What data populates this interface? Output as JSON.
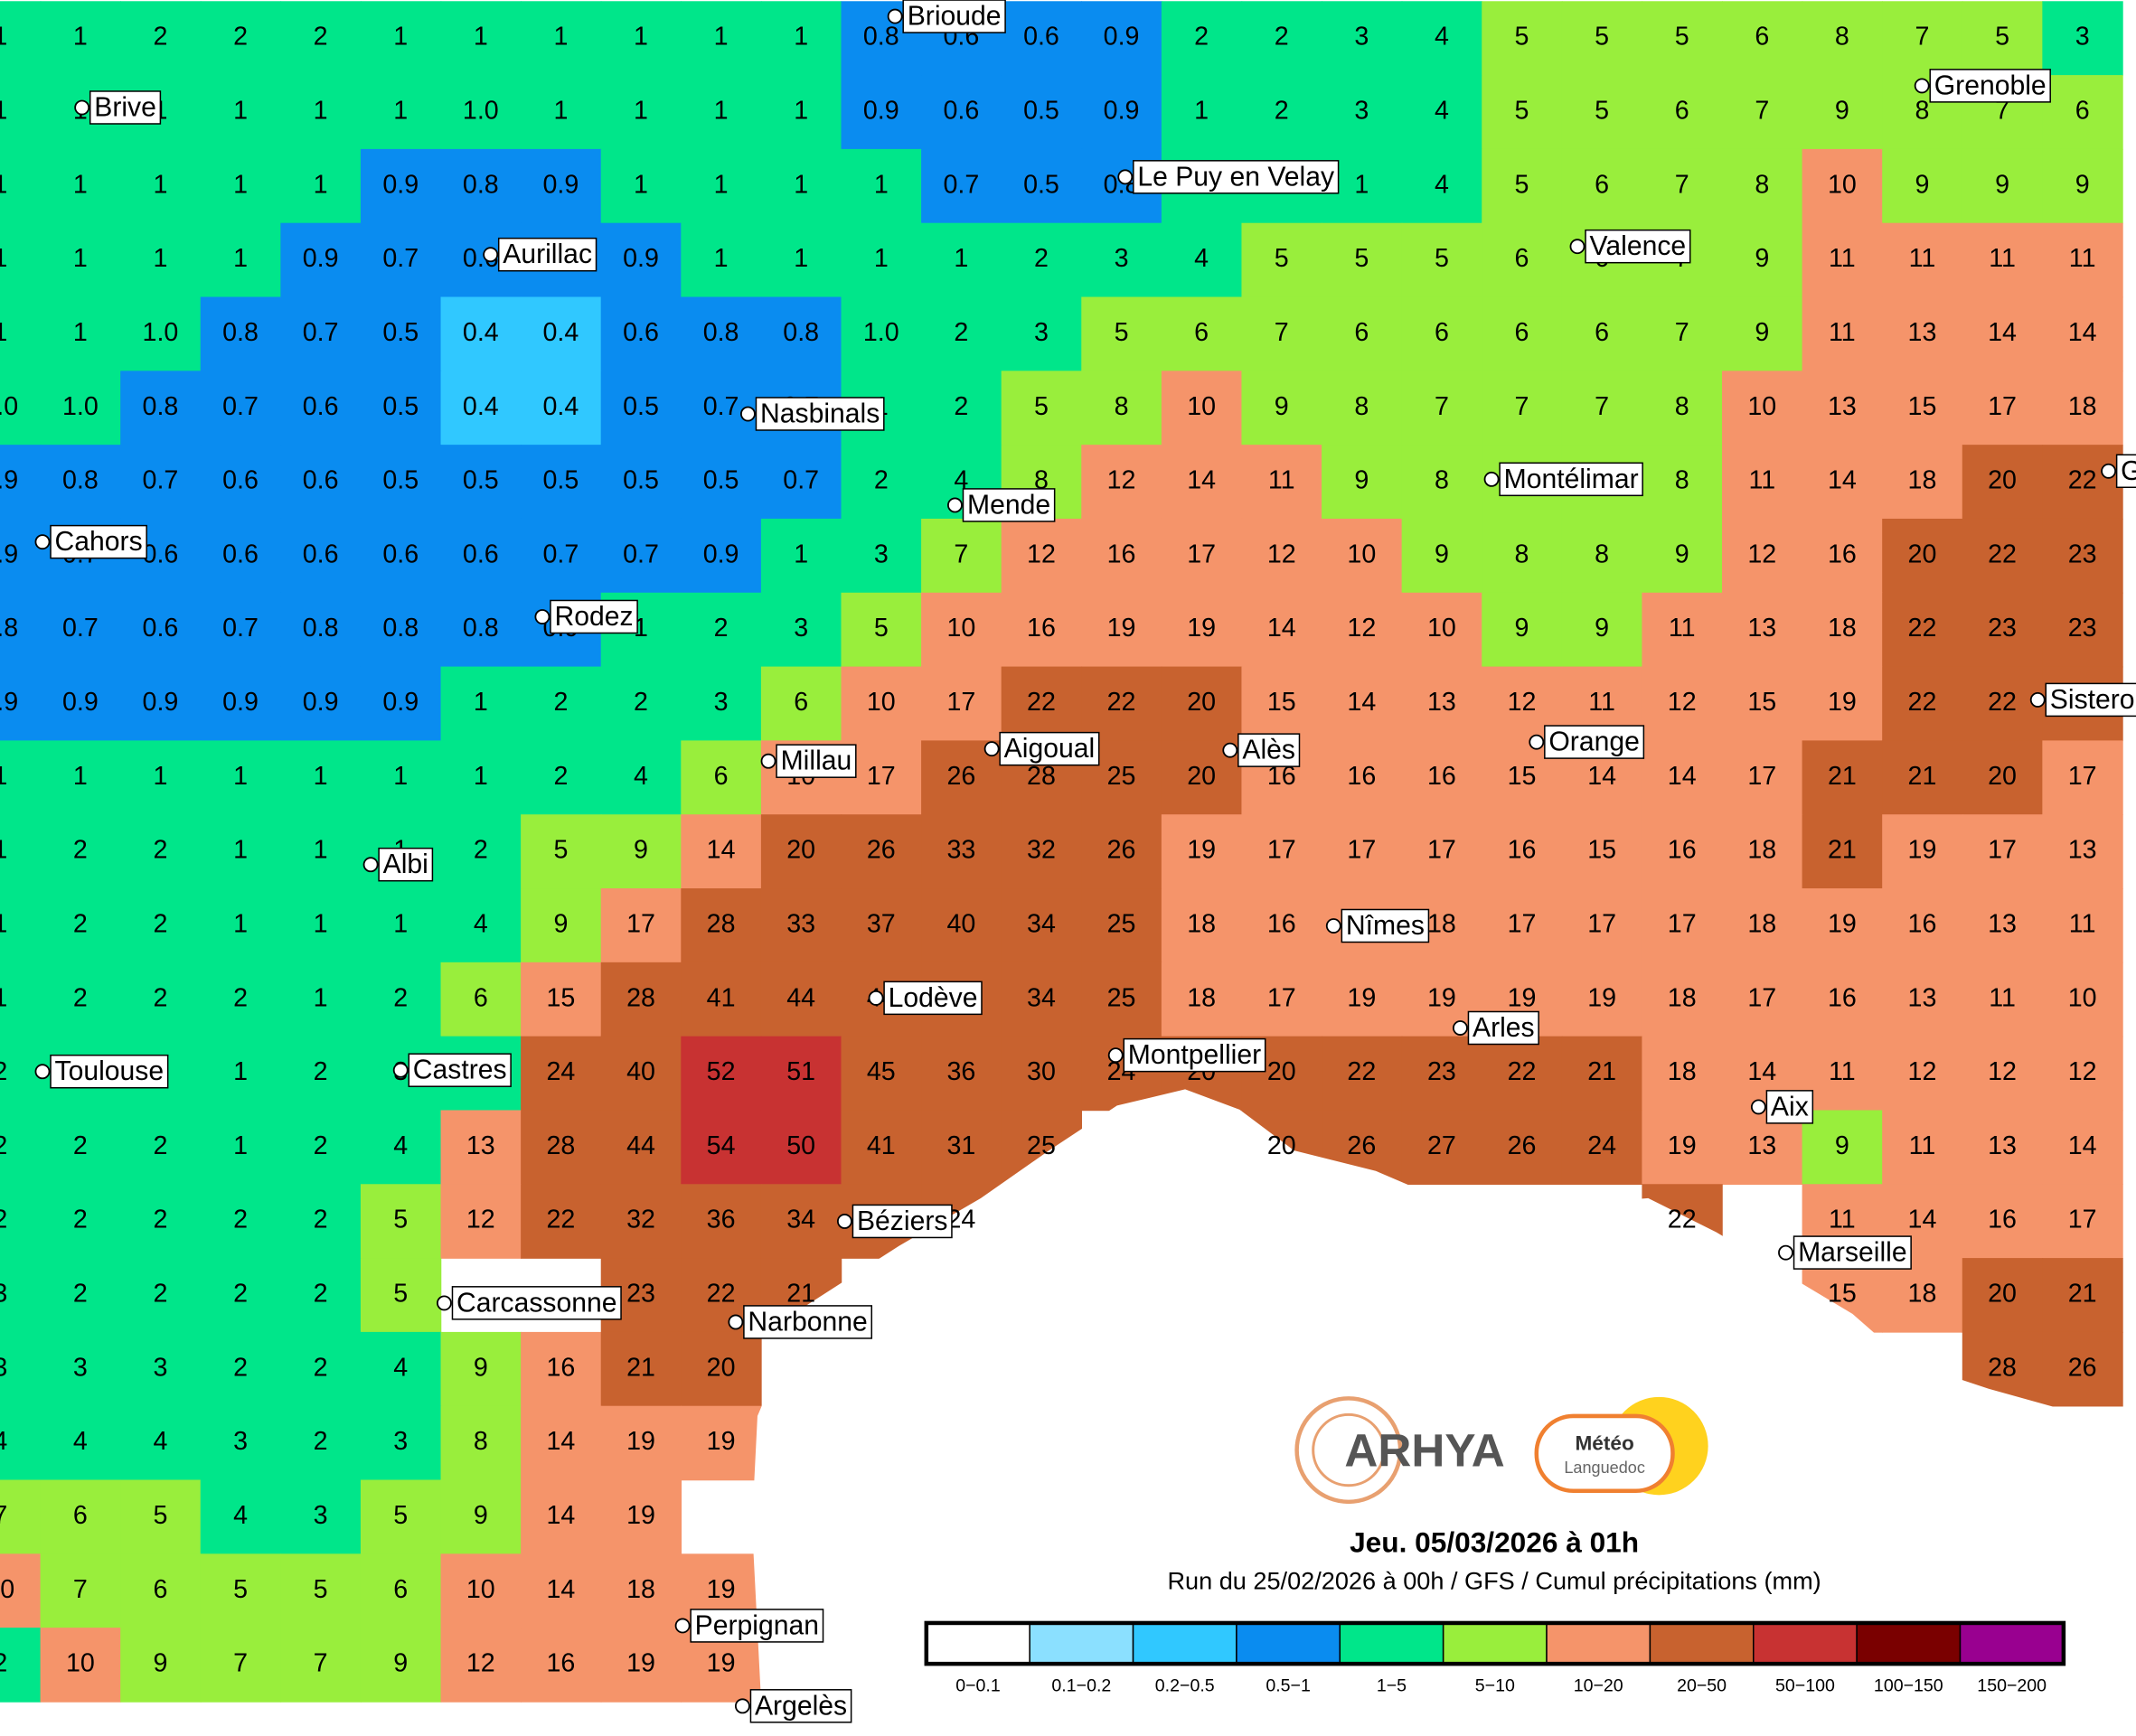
{
  "title": "Jeu. 05/03/2026 à 01h",
  "subtitle": "Run du 25/02/2026 à 00h / GFS / Cumul précipitations (mm)",
  "logo": {
    "brand": "ARHYA",
    "partner_top": "Météo",
    "partner_bottom": "Languedoc"
  },
  "legend": {
    "bounds": [
      0,
      0.1,
      0.2,
      0.5,
      1,
      5,
      10,
      20,
      50,
      100,
      150,
      200
    ],
    "items": [
      {
        "label": "0−0.1",
        "color": "#ffffff"
      },
      {
        "label": "0.1−0.2",
        "color": "#8be0ff"
      },
      {
        "label": "0.2−0.5",
        "color": "#30c8ff"
      },
      {
        "label": "0.5−1",
        "color": "#0a8cf0"
      },
      {
        "label": "1−5",
        "color": "#00e68a"
      },
      {
        "label": "5−10",
        "color": "#99ee3c"
      },
      {
        "label": "10−20",
        "color": "#f5946a"
      },
      {
        "label": "20−50",
        "color": "#c8622f"
      },
      {
        "label": "50−100",
        "color": "#c83232"
      },
      {
        "label": "100−150",
        "color": "#7a0000"
      },
      {
        "label": "150−200",
        "color": "#990090"
      }
    ]
  },
  "cities": [
    "Brioude",
    "Brive",
    "Grenoble",
    "Le Puy en Velay",
    "Valence",
    "Aurillac",
    "Nasbinals",
    "Montélimar",
    "Mende",
    "Cahors",
    "Rodez",
    "Sisteron",
    "Orange",
    "Aigoual",
    "Alès",
    "Millau",
    "Albi",
    "Nîmes",
    "Lodève",
    "Arles",
    "Montpellier",
    "Toulouse",
    "Castres",
    "Aix",
    "Béziers",
    "Marseille",
    "Carcassonne",
    "Narbonne",
    "Perpignan",
    "Argelès",
    "G"
  ],
  "grid": {
    "rows": [
      [
        1,
        1,
        2,
        2,
        2,
        1,
        1,
        1,
        1,
        1,
        1,
        0.8,
        0.6,
        0.6,
        0.9,
        2,
        2,
        3,
        4,
        5,
        5,
        5,
        6,
        8,
        7,
        5,
        3
      ],
      [
        1,
        1,
        1,
        1,
        1,
        1,
        {
          "value": 1,
          "label": "1.0"
        },
        1,
        1,
        1,
        1,
        0.9,
        0.6,
        0.5,
        0.9,
        1,
        2,
        3,
        4,
        5,
        5,
        6,
        7,
        9,
        8,
        7,
        6
      ],
      [
        1,
        1,
        1,
        1,
        1,
        0.9,
        0.8,
        0.9,
        1,
        1,
        1,
        1,
        0.7,
        0.5,
        0.8,
        1,
        1,
        1,
        4,
        5,
        6,
        7,
        8,
        10,
        9,
        9,
        9
      ],
      [
        1,
        1,
        1,
        1,
        0.9,
        0.7,
        0.6,
        0.7,
        0.9,
        1,
        1,
        1,
        1,
        2,
        3,
        4,
        5,
        5,
        5,
        6,
        6,
        7,
        9,
        11,
        11,
        11,
        11
      ],
      [
        1,
        1,
        {
          "value": 1,
          "label": "1.0"
        },
        0.8,
        0.7,
        0.5,
        0.4,
        0.4,
        0.6,
        0.8,
        0.8,
        {
          "value": 1,
          "label": "1.0"
        },
        2,
        3,
        5,
        6,
        7,
        6,
        6,
        6,
        6,
        7,
        9,
        11,
        13,
        14,
        14
      ],
      [
        {
          "value": 1,
          "label": "1.0"
        },
        {
          "value": 1,
          "label": "1.0"
        },
        0.8,
        0.7,
        0.6,
        0.5,
        0.4,
        0.4,
        0.5,
        0.7,
        0.7,
        1,
        2,
        5,
        8,
        10,
        9,
        8,
        7,
        7,
        7,
        8,
        10,
        13,
        15,
        17,
        18
      ],
      [
        0.9,
        0.8,
        0.7,
        0.6,
        0.6,
        0.5,
        0.5,
        0.5,
        0.5,
        0.5,
        0.7,
        2,
        4,
        8,
        12,
        14,
        11,
        9,
        8,
        8,
        8,
        8,
        11,
        14,
        18,
        20,
        22
      ],
      [
        0.9,
        0.7,
        0.6,
        0.6,
        0.6,
        0.6,
        0.6,
        0.7,
        0.7,
        0.9,
        1,
        3,
        7,
        12,
        16,
        17,
        12,
        10,
        9,
        8,
        8,
        9,
        12,
        16,
        20,
        22,
        23
      ],
      [
        0.8,
        0.7,
        0.6,
        0.7,
        0.8,
        0.8,
        0.8,
        0.9,
        1,
        2,
        3,
        5,
        10,
        16,
        19,
        19,
        14,
        12,
        10,
        9,
        9,
        11,
        13,
        18,
        22,
        23,
        23
      ],
      [
        0.9,
        0.9,
        0.9,
        0.9,
        0.9,
        0.9,
        1,
        2,
        2,
        3,
        6,
        10,
        17,
        22,
        22,
        20,
        15,
        14,
        13,
        12,
        11,
        12,
        15,
        19,
        22,
        22,
        22
      ],
      [
        1,
        1,
        1,
        1,
        1,
        1,
        1,
        2,
        4,
        6,
        10,
        17,
        26,
        28,
        25,
        20,
        16,
        16,
        16,
        15,
        14,
        14,
        17,
        21,
        21,
        20,
        17
      ],
      [
        1,
        2,
        2,
        1,
        1,
        1,
        2,
        5,
        9,
        14,
        20,
        26,
        33,
        32,
        26,
        19,
        17,
        17,
        17,
        16,
        15,
        16,
        18,
        21,
        19,
        17,
        13
      ],
      [
        1,
        2,
        2,
        1,
        1,
        1,
        4,
        9,
        17,
        28,
        33,
        37,
        40,
        34,
        25,
        18,
        16,
        18,
        18,
        17,
        17,
        17,
        18,
        19,
        16,
        13,
        11
      ],
      [
        1,
        2,
        2,
        2,
        1,
        2,
        6,
        15,
        28,
        41,
        44,
        44,
        34,
        34,
        25,
        18,
        17,
        19,
        19,
        19,
        19,
        18,
        17,
        16,
        13,
        11,
        10
      ],
      [
        2,
        2,
        1,
        1,
        2,
        3,
        3,
        24,
        40,
        52,
        51,
        45,
        36,
        30,
        24,
        20,
        20,
        22,
        23,
        22,
        21,
        18,
        14,
        11,
        12,
        12,
        12
      ],
      [
        2,
        2,
        2,
        1,
        2,
        4,
        13,
        28,
        44,
        54,
        50,
        41,
        31,
        25,
        null,
        null,
        20,
        26,
        27,
        26,
        24,
        19,
        13,
        9,
        11,
        13,
        14
      ],
      [
        2,
        2,
        2,
        2,
        2,
        5,
        12,
        22,
        32,
        36,
        34,
        24,
        24,
        null,
        null,
        null,
        null,
        null,
        null,
        null,
        null,
        22,
        null,
        11,
        14,
        16,
        17
      ],
      [
        3,
        2,
        2,
        2,
        2,
        5,
        null,
        null,
        23,
        22,
        21,
        null,
        null,
        null,
        null,
        null,
        null,
        null,
        null,
        null,
        null,
        null,
        null,
        15,
        18,
        20,
        21
      ],
      [
        3,
        3,
        3,
        2,
        2,
        4,
        9,
        16,
        21,
        20,
        null,
        null,
        null,
        null,
        null,
        null,
        null,
        null,
        null,
        null,
        null,
        null,
        null,
        null,
        null,
        28,
        26
      ],
      [
        4,
        4,
        4,
        3,
        2,
        3,
        8,
        14,
        19,
        19,
        null,
        null,
        null,
        null,
        null,
        null,
        null,
        null,
        null,
        null,
        null,
        null,
        null,
        null,
        null,
        null,
        null
      ],
      [
        7,
        6,
        5,
        4,
        3,
        5,
        9,
        14,
        19,
        null,
        null,
        null,
        null,
        null,
        null,
        null,
        null,
        null,
        null,
        null,
        null,
        null,
        null,
        null,
        null,
        null,
        null
      ],
      [
        10,
        7,
        6,
        5,
        5,
        6,
        10,
        14,
        18,
        19,
        null,
        null,
        null,
        null,
        null,
        null,
        null,
        null,
        null,
        null,
        null,
        null,
        null,
        null,
        null,
        null,
        null
      ],
      [
        2,
        10,
        9,
        7,
        7,
        9,
        12,
        16,
        19,
        19,
        null,
        null,
        null,
        null,
        null,
        null,
        null,
        null,
        null,
        null,
        null,
        null,
        null,
        null,
        null,
        null,
        null
      ]
    ]
  }
}
